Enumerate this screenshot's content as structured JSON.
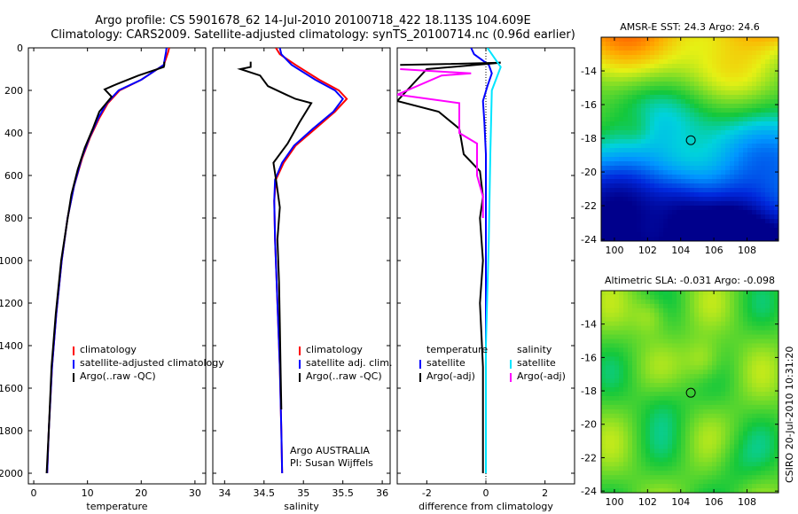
{
  "title": {
    "line1": "Argo profile: CS 5901678_62 14-Jul-2010 20100718_422 18.113S 104.609E",
    "line2": "Climatology: CARS2009. Satellite-adjusted climatology: synTS_20100714.nc (0.96d earlier)"
  },
  "credit": "CSIRO 20-Jul-2010 10:31:20",
  "colors": {
    "climatology": "#ff0000",
    "satellite": "#0000ff",
    "argo": "#000000",
    "salinity_satellite": "#00e5ff",
    "salinity_argo": "#ff00ff"
  },
  "chart_data": [
    {
      "type": "line",
      "name": "temperature-profile",
      "xlabel": "temperature",
      "ylabel": "",
      "xlim": [
        -1,
        32
      ],
      "ylim": [
        2050,
        0
      ],
      "xticks": [
        "0",
        "10",
        "20",
        "30"
      ],
      "xtick_values": [
        0,
        10,
        20,
        30
      ],
      "yticks": [
        "0",
        "200",
        "400",
        "600",
        "800",
        "1000",
        "1200",
        "1400",
        "1600",
        "1800",
        "2000"
      ],
      "ytick_values": [
        0,
        200,
        400,
        600,
        800,
        1000,
        1200,
        1400,
        1600,
        1800,
        2000
      ],
      "legend": [
        "climatology",
        "satellite-adjusted climatology",
        "Argo(..raw -QC)"
      ],
      "series": [
        {
          "name": "climatology",
          "color": "#ff0000",
          "x": [
            25.2,
            25.0,
            24.6,
            24.2,
            20.0,
            16.0,
            13.8,
            12.2,
            10.5,
            9.0,
            7.5,
            6.3,
            5.2,
            4.2,
            3.4,
            2.8,
            2.5
          ],
          "y": [
            0,
            20,
            50,
            80,
            150,
            200,
            260,
            330,
            420,
            520,
            650,
            800,
            1000,
            1250,
            1500,
            1800,
            2000
          ]
        },
        {
          "name": "satellite-adjusted climatology",
          "color": "#0000ff",
          "x": [
            24.7,
            24.6,
            24.4,
            24.2,
            20.0,
            15.8,
            13.6,
            12.0,
            10.4,
            8.9,
            7.5,
            6.3,
            5.2,
            4.2,
            3.4,
            2.8,
            2.5
          ],
          "y": [
            0,
            20,
            50,
            80,
            150,
            200,
            260,
            330,
            420,
            520,
            650,
            800,
            1000,
            1250,
            1500,
            1800,
            2000
          ]
        },
        {
          "name": "Argo(..raw -QC)",
          "color": "#000000",
          "x": [
            24.3,
            24.3,
            24.2,
            19.5,
            15.5,
            13.2,
            14.5,
            12.2,
            11.0,
            9.5,
            8.2,
            7.0,
            6.2,
            5.1,
            4.1,
            3.3,
            2.8,
            2.4
          ],
          "y": [
            65,
            80,
            90,
            130,
            170,
            195,
            230,
            300,
            380,
            470,
            570,
            690,
            820,
            1000,
            1250,
            1500,
            1800,
            2000
          ]
        }
      ]
    },
    {
      "type": "line",
      "name": "salinity-profile",
      "xlabel": "salinity",
      "ylabel": "",
      "xlim": [
        33.85,
        36.1
      ],
      "ylim": [
        2050,
        0
      ],
      "xticks": [
        "34",
        "34.5",
        "35",
        "35.5",
        "36"
      ],
      "xtick_values": [
        34,
        34.5,
        35,
        35.5,
        36
      ],
      "legend": [
        "climatology",
        "satellite adj. clim.",
        "Argo(..raw -QC)"
      ],
      "annotation": [
        "Argo AUSTRALIA",
        "PI: Susan Wijffels"
      ],
      "series": [
        {
          "name": "climatology",
          "color": "#ff0000",
          "x": [
            34.65,
            34.7,
            34.9,
            35.2,
            35.45,
            35.55,
            35.4,
            35.15,
            34.9,
            34.75,
            34.65,
            34.63,
            34.64,
            34.66,
            34.68,
            34.7,
            34.72,
            34.73
          ],
          "y": [
            0,
            30,
            80,
            150,
            200,
            240,
            300,
            380,
            460,
            540,
            620,
            720,
            900,
            1100,
            1300,
            1500,
            1800,
            2000
          ]
        },
        {
          "name": "satellite adj. clim.",
          "color": "#0000ff",
          "x": [
            34.7,
            34.72,
            34.85,
            35.15,
            35.4,
            35.5,
            35.38,
            35.12,
            34.88,
            34.73,
            34.64,
            34.63,
            34.64,
            34.66,
            34.68,
            34.7,
            34.72,
            34.73
          ],
          "y": [
            0,
            30,
            80,
            150,
            200,
            240,
            300,
            380,
            460,
            540,
            620,
            720,
            900,
            1100,
            1300,
            1500,
            1800,
            2000
          ]
        },
        {
          "name": "Argo(..raw -QC)",
          "color": "#000000",
          "x": [
            34.33,
            34.33,
            34.2,
            34.45,
            34.55,
            34.78,
            34.9,
            35.1,
            34.95,
            34.8,
            34.62,
            34.66,
            34.7,
            34.67,
            34.69,
            34.7,
            34.71,
            34.72
          ],
          "y": [
            65,
            90,
            100,
            130,
            180,
            220,
            240,
            260,
            350,
            450,
            540,
            640,
            750,
            900,
            1100,
            1300,
            1500,
            1700
          ]
        }
      ]
    },
    {
      "type": "line",
      "name": "difference-profile",
      "xlabel": "difference from climatology",
      "ylabel": "",
      "xlim": [
        -3,
        3
      ],
      "ylim": [
        2050,
        0
      ],
      "xticks": [
        "-2",
        "0",
        "2"
      ],
      "xtick_values": [
        -2,
        0,
        2
      ],
      "legend_temperature": {
        "heading": "temperature",
        "items": [
          "satellite",
          "Argo(-adj)"
        ]
      },
      "legend_salinity": {
        "heading": "salinity",
        "items": [
          "satellite",
          "Argo(-adj)"
        ]
      },
      "series": [
        {
          "name": "temperature satellite",
          "color": "#0000ff",
          "x": [
            -0.5,
            -0.4,
            0.1,
            0.2,
            0.05,
            -0.1,
            -0.05,
            0.0,
            0.0,
            0.0,
            0.0,
            0.0,
            0.0
          ],
          "y": [
            0,
            30,
            80,
            120,
            180,
            250,
            350,
            500,
            700,
            1000,
            1400,
            1800,
            2000
          ]
        },
        {
          "name": "temperature Argo(-adj)",
          "color": "#000000",
          "x": [
            -2.9,
            -1.0,
            0.5,
            -2.0,
            -3.0,
            -1.6,
            -0.9,
            -0.75,
            -0.2,
            -0.1,
            -0.2,
            -0.1,
            -0.2,
            -0.1,
            -0.1,
            -0.1,
            -0.1
          ],
          "y": [
            80,
            75,
            70,
            100,
            250,
            300,
            380,
            500,
            580,
            700,
            800,
            1000,
            1200,
            1500,
            1700,
            1900,
            2000
          ]
        },
        {
          "name": "salinity satellite",
          "color": "#00e5ff",
          "x": [
            0.05,
            0.2,
            0.5,
            0.2,
            0.15,
            0.1,
            0.0,
            0.0
          ],
          "y": [
            0,
            30,
            90,
            200,
            500,
            900,
            1400,
            2000
          ]
        },
        {
          "name": "salinity Argo(-adj)",
          "color": "#ff00ff",
          "x": [
            -2.9,
            -0.5,
            -1.5,
            -3.0,
            -0.9,
            -0.9,
            -0.3,
            -0.3,
            -0.1,
            -0.1
          ],
          "y": [
            100,
            120,
            130,
            220,
            260,
            400,
            450,
            600,
            700,
            800
          ]
        }
      ]
    },
    {
      "type": "heatmap",
      "name": "sst-map",
      "title": "AMSR-E SST: 24.3 Argo: 24.6",
      "xticks": [
        "100",
        "102",
        "104",
        "106",
        "108"
      ],
      "xtick_values": [
        100,
        102,
        104,
        106,
        108
      ],
      "yticks": [
        "-14",
        "-16",
        "-18",
        "-20",
        "-22",
        "-24"
      ],
      "ytick_values": [
        -14,
        -16,
        -18,
        -20,
        -22,
        -24
      ],
      "xlim": [
        99.2,
        109.9
      ],
      "ylim": [
        -24.1,
        -12.0
      ],
      "marker": {
        "lon": 104.609,
        "lat": -18.113
      }
    },
    {
      "type": "heatmap",
      "name": "sla-map",
      "title": "Altimetric SLA: -0.031 Argo: -0.098",
      "xticks": [
        "100",
        "102",
        "104",
        "106",
        "108"
      ],
      "xtick_values": [
        100,
        102,
        104,
        106,
        108
      ],
      "yticks": [
        "-14",
        "-16",
        "-18",
        "-20",
        "-22",
        "-24"
      ],
      "ytick_values": [
        -14,
        -16,
        -18,
        -20,
        -22,
        -24
      ],
      "xlim": [
        99.2,
        109.9
      ],
      "ylim": [
        -24.1,
        -12.0
      ],
      "marker": {
        "lon": 104.609,
        "lat": -18.113
      }
    }
  ]
}
